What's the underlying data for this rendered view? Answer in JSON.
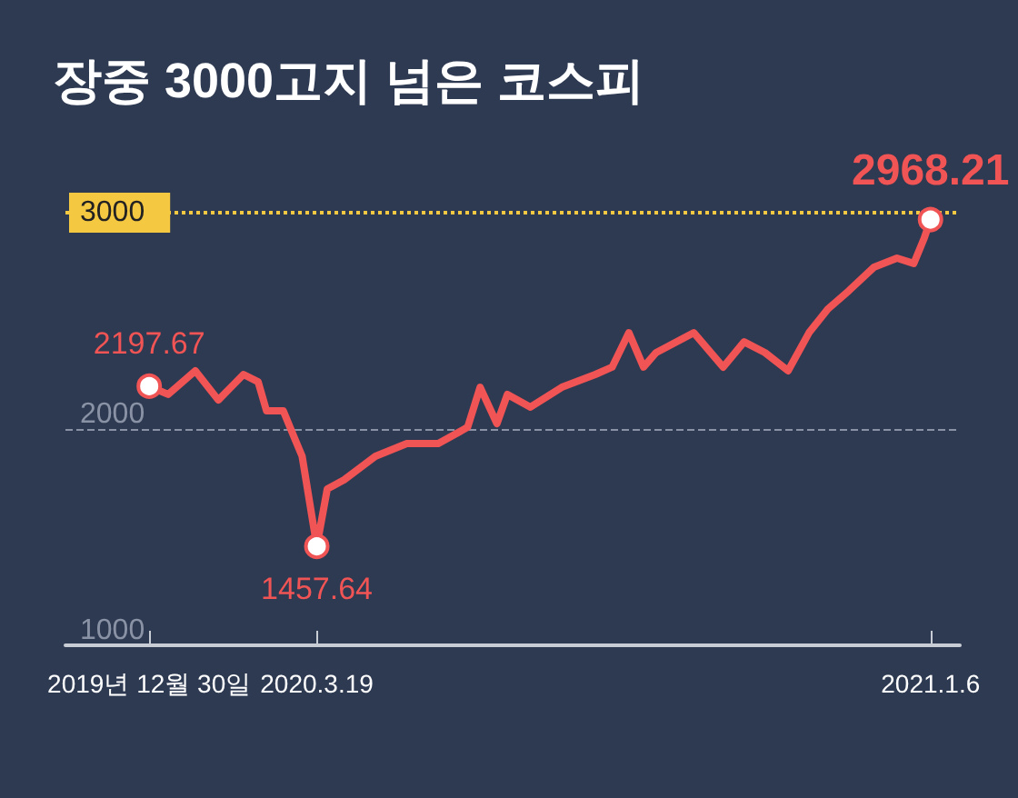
{
  "chart_data": {
    "type": "line",
    "title": "장중 3000고지 넘은 코스피",
    "color": "#f05454",
    "x": [
      "2019-12-30",
      "2020-01-08",
      "2020-01-21",
      "2020-02-01",
      "2020-02-13",
      "2020-02-20",
      "2020-02-24",
      "2020-03-03",
      "2020-03-08",
      "2020-03-12",
      "2020-03-19",
      "2020-03-24",
      "2020-04-01",
      "2020-04-16",
      "2020-05-01",
      "2020-05-16",
      "2020-05-30",
      "2020-06-05",
      "2020-06-13",
      "2020-06-18",
      "2020-06-29",
      "2020-07-14",
      "2020-07-30",
      "2020-08-07",
      "2020-08-15",
      "2020-08-22",
      "2020-08-28",
      "2020-09-15",
      "2020-09-29",
      "2020-10-09",
      "2020-10-19",
      "2020-10-30",
      "2020-11-09",
      "2020-11-18",
      "2020-11-28",
      "2020-12-10",
      "2020-12-21",
      "2020-12-29",
      "2021-01-03",
      "2021-01-06"
    ],
    "values": [
      2197.67,
      2160,
      2269,
      2134,
      2252,
      2218,
      2084,
      2084,
      1966,
      1874,
      1457.64,
      1723,
      1765,
      1874,
      1933,
      1933,
      2008,
      2193,
      2025,
      2160,
      2101,
      2193,
      2252,
      2286,
      2445,
      2286,
      2353,
      2445,
      2286,
      2403,
      2353,
      2269,
      2445,
      2555,
      2639,
      2748,
      2790,
      2765,
      2882,
      2968.21
    ],
    "xlim": [
      "2019-11-20",
      "2021-01-20"
    ],
    "xticks": [
      {
        "value": "2019-12-30",
        "label": "2019년 12월 30일"
      },
      {
        "value": "2020-03-19",
        "label": "2020.3.19"
      },
      {
        "value": "2021-01-06",
        "label": "2021.1.6"
      }
    ],
    "ylim": [
      1000,
      3000
    ],
    "yticks": [
      1000,
      2000
    ],
    "grid": "y",
    "marker": "none",
    "line_style": "solid",
    "ref_lines": [
      {
        "axis": "y",
        "value": 3000,
        "label": "3000",
        "color": "#f5c842",
        "line_style": "dotted"
      }
    ],
    "annotations": [
      {
        "text": "2197.67",
        "x": "2019-12-30",
        "y": 2197.67
      },
      {
        "text": "1457.64",
        "x": "2020-03-19",
        "y": 1457.64
      },
      {
        "text": "2968.21",
        "x": "2021-01-06",
        "y": 2968.21
      }
    ]
  }
}
